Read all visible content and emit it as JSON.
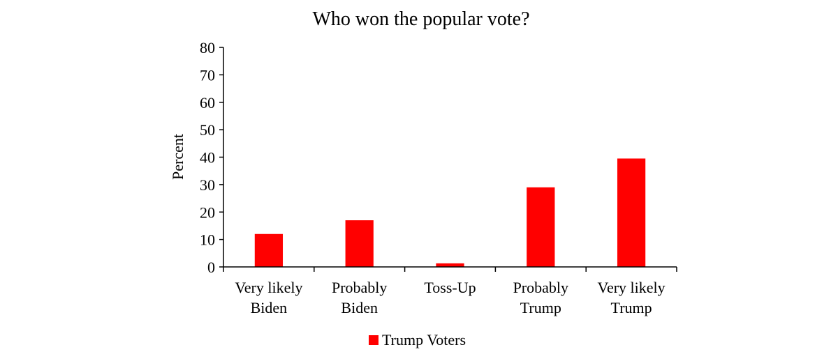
{
  "chart_data": {
    "type": "bar",
    "title": "Who won the popular vote?",
    "ylabel": "Percent",
    "xlabel": "",
    "ylim": [
      0,
      80
    ],
    "yticks": [
      0,
      10,
      20,
      30,
      40,
      50,
      60,
      70,
      80
    ],
    "categories": [
      [
        "Very likely",
        "Biden"
      ],
      [
        "Probably",
        "Biden"
      ],
      [
        "Toss-Up"
      ],
      [
        "Probably",
        "Trump"
      ],
      [
        "Very likely",
        "Trump"
      ]
    ],
    "series": [
      {
        "name": "Trump Voters",
        "color": "#ff0000",
        "values": [
          12,
          17,
          1.3,
          29,
          39.5
        ]
      }
    ],
    "legend_position": "bottom",
    "grid": false
  }
}
